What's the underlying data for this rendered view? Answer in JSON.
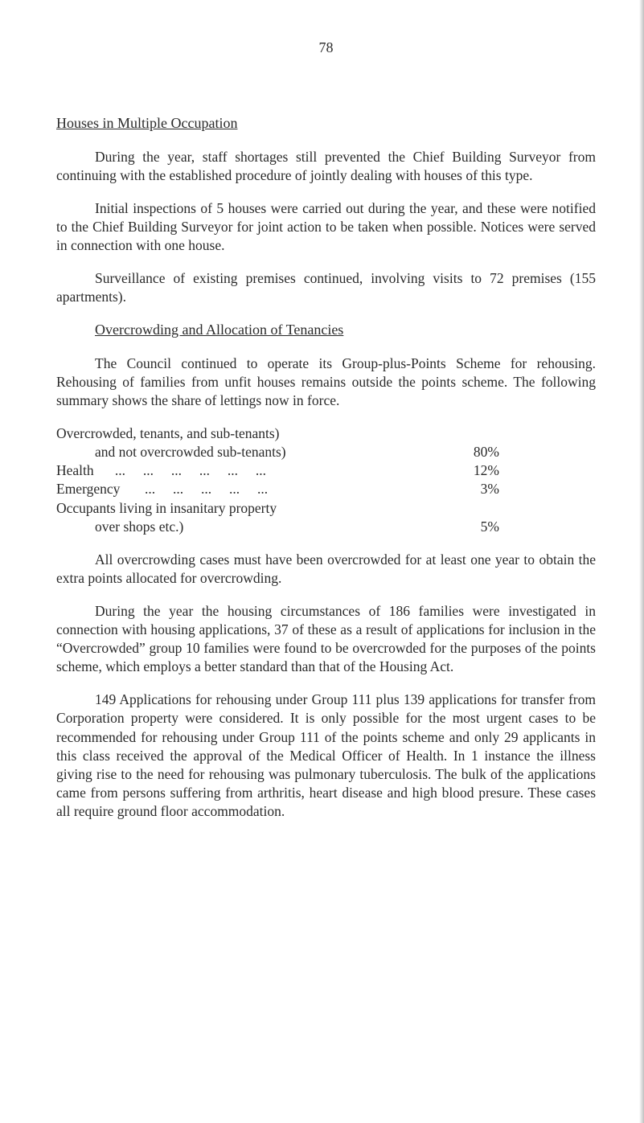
{
  "page_number": "78",
  "section1": {
    "heading": "Houses in Multiple Occupation",
    "p1": "During the year, staff shortages still prevented the Chief Building Surveyor from continuing with the established procedure of jointly dealing with houses of this type.",
    "p2": "Initial inspections of 5 houses were carried out during the year, and these were notified to the Chief Building Surveyor for joint action to be taken when possible. Notices were served in connection with one house.",
    "p3": "Surveillance of existing premises continued, involving visits to 72 premises (155 apartments)."
  },
  "section2": {
    "heading": "Overcrowding and Allocation of Tenancies",
    "p1": "The Council continued to operate its Group-plus-Points Scheme for rehousing. Rehousing of families from unfit houses remains outside the points scheme. The following summary shows the share of lettings now in force.",
    "summary": {
      "row1a": "Overcrowded, tenants, and sub-tenants)",
      "row1b_label": "and not overcrowded sub-tenants)",
      "row1b_value": "80%",
      "row2_label": "Health      ...     ...     ...     ...     ...     ...",
      "row2_value": "12%",
      "row3_label": "Emergency       ...     ...     ...     ...     ...",
      "row3_value": "3%",
      "row4a": "Occupants living in insanitary property",
      "row4b_label": "over shops etc.)",
      "row4b_value": "5%"
    },
    "p2": "All overcrowding cases must have been overcrowded for at least one year to obtain the extra points allocated for overcrowding.",
    "p3": "During the year the housing circumstances of 186 families were investigated in connection with housing applications, 37 of these as a result of applications for inclusion in the “Overcrowded” group 10 families were found to be overcrowded for the purposes of the points scheme, which employs a better standard than that of the Housing Act.",
    "p4": "149 Applications for rehousing under Group 111 plus 139 applications for transfer from Corporation property were considered. It is only possible for the most urgent cases to be recommended for rehousing under Group 111 of the points scheme and only 29 applicants in this class received the approval of the Medical Officer of Health. In 1 instance the illness giving rise to the need for rehousing was pulmonary tuberculosis. The bulk of the applications came from persons suffering from arthritis, heart disease and high blood presure. These cases all require ground floor accommodation."
  }
}
